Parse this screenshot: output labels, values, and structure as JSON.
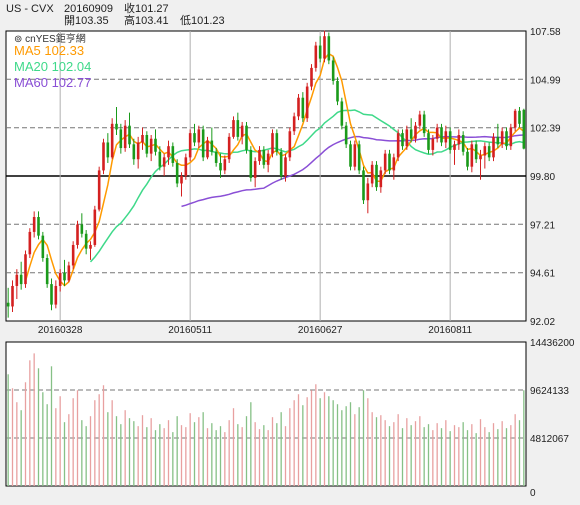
{
  "header": {
    "symbol": "US - CVX",
    "date": "20160909",
    "close_label": "收101.27",
    "open_label": "開103.35",
    "high_label": "高103.41",
    "low_label": "低101.23"
  },
  "legend": {
    "brand": "⊚ cnYES鉅亨網",
    "items": [
      {
        "label": "MA5 102.33",
        "color": "#ff9a00"
      },
      {
        "label": "MA20 102.04",
        "color": "#3fd98a"
      },
      {
        "label": "MA60 102.77",
        "color": "#8a4fd6"
      }
    ]
  },
  "colors": {
    "up": "#d42020",
    "down": "#1a9a1a",
    "vol_up": "#e8a0a0",
    "vol_down": "#86c086",
    "ma5": "#ff9a00",
    "ma20": "#3fd98a",
    "ma60": "#8a4fd6"
  },
  "chart_data": [
    {
      "type": "candlestick",
      "y_ticks": [
        "107.58",
        "104.99",
        "102.39",
        "99.80",
        "97.21",
        "94.61",
        "92.02"
      ],
      "ylim": [
        92.02,
        107.58
      ],
      "x_ticks": [
        "20160328",
        "20160511",
        "20160627",
        "20160811"
      ],
      "x_tick_index": [
        12,
        42,
        72,
        102
      ],
      "reference_line": 99.8,
      "n_bars": 120,
      "ohlc": [
        [
          93.0,
          93.8,
          92.2,
          92.8
        ],
        [
          92.8,
          94.2,
          92.5,
          93.9
        ],
        [
          93.9,
          94.8,
          93.2,
          94.5
        ],
        [
          94.5,
          95.2,
          93.7,
          94.0
        ],
        [
          94.0,
          95.8,
          93.8,
          95.6
        ],
        [
          95.6,
          97.0,
          95.4,
          96.8
        ],
        [
          96.8,
          97.9,
          96.5,
          97.6
        ],
        [
          97.6,
          97.9,
          96.4,
          96.6
        ],
        [
          96.6,
          96.8,
          95.2,
          95.4
        ],
        [
          95.4,
          95.6,
          93.8,
          94.0
        ],
        [
          94.0,
          94.3,
          92.6,
          92.9
        ],
        [
          92.9,
          94.2,
          92.7,
          93.9
        ],
        [
          93.9,
          94.8,
          93.6,
          94.6
        ],
        [
          94.6,
          95.3,
          93.9,
          94.2
        ],
        [
          94.2,
          95.2,
          94.1,
          95.0
        ],
        [
          95.0,
          96.3,
          94.8,
          96.1
        ],
        [
          96.1,
          97.4,
          95.9,
          97.2
        ],
        [
          97.2,
          97.8,
          96.5,
          96.7
        ],
        [
          96.7,
          96.9,
          95.6,
          95.9
        ],
        [
          95.9,
          96.3,
          95.3,
          96.1
        ],
        [
          96.1,
          98.2,
          96.0,
          98.0
        ],
        [
          98.0,
          100.3,
          97.9,
          100.1
        ],
        [
          100.1,
          101.8,
          99.9,
          101.6
        ],
        [
          101.6,
          102.1,
          100.5,
          100.8
        ],
        [
          100.8,
          102.9,
          100.7,
          102.6
        ],
        [
          102.6,
          103.5,
          102.0,
          102.3
        ],
        [
          102.3,
          102.6,
          101.0,
          101.3
        ],
        [
          101.3,
          102.8,
          101.1,
          102.5
        ],
        [
          102.5,
          103.2,
          101.3,
          101.5
        ],
        [
          101.5,
          101.8,
          100.4,
          100.7
        ],
        [
          100.7,
          101.9,
          100.2,
          101.6
        ],
        [
          101.6,
          102.4,
          101.2,
          102.0
        ],
        [
          102.0,
          102.2,
          100.8,
          101.0
        ],
        [
          101.0,
          102.0,
          100.6,
          101.8
        ],
        [
          101.8,
          102.3,
          100.9,
          101.1
        ],
        [
          101.1,
          101.4,
          100.1,
          100.3
        ],
        [
          100.3,
          101.0,
          99.8,
          100.8
        ],
        [
          100.8,
          101.7,
          100.4,
          101.4
        ],
        [
          101.4,
          101.6,
          100.3,
          100.5
        ],
        [
          100.5,
          100.7,
          99.2,
          99.4
        ],
        [
          99.4,
          100.0,
          98.7,
          99.8
        ],
        [
          99.8,
          101.0,
          99.6,
          100.8
        ],
        [
          100.8,
          102.3,
          100.6,
          102.1
        ],
        [
          102.1,
          102.6,
          101.4,
          101.6
        ],
        [
          101.6,
          102.5,
          101.3,
          102.3
        ],
        [
          102.3,
          102.5,
          100.6,
          100.8
        ],
        [
          100.8,
          101.9,
          100.7,
          101.7
        ],
        [
          101.7,
          102.4,
          100.9,
          101.1
        ],
        [
          101.1,
          101.3,
          100.3,
          100.5
        ],
        [
          100.5,
          101.0,
          99.7,
          100.1
        ],
        [
          100.1,
          100.9,
          99.9,
          100.7
        ],
        [
          100.7,
          102.1,
          100.5,
          101.9
        ],
        [
          101.9,
          103.0,
          101.8,
          102.8
        ],
        [
          102.8,
          103.2,
          101.7,
          101.9
        ],
        [
          101.9,
          102.7,
          101.5,
          102.5
        ],
        [
          102.5,
          102.7,
          101.0,
          101.2
        ],
        [
          101.2,
          101.4,
          99.5,
          99.7
        ],
        [
          99.7,
          100.8,
          99.2,
          100.6
        ],
        [
          100.6,
          101.4,
          100.4,
          101.2
        ],
        [
          101.2,
          101.4,
          100.2,
          100.4
        ],
        [
          100.4,
          101.2,
          100.0,
          101.0
        ],
        [
          101.0,
          102.3,
          100.8,
          102.1
        ],
        [
          102.1,
          102.3,
          100.9,
          101.1
        ],
        [
          101.1,
          101.3,
          99.6,
          99.8
        ],
        [
          99.8,
          101.0,
          99.5,
          100.8
        ],
        [
          100.8,
          102.4,
          100.6,
          102.2
        ],
        [
          102.2,
          103.2,
          102.0,
          103.0
        ],
        [
          103.0,
          104.2,
          102.8,
          104.0
        ],
        [
          104.0,
          104.3,
          102.7,
          102.9
        ],
        [
          102.9,
          104.8,
          102.7,
          104.6
        ],
        [
          104.6,
          105.8,
          104.4,
          105.6
        ],
        [
          105.6,
          107.0,
          105.4,
          106.8
        ],
        [
          106.8,
          107.3,
          105.9,
          106.1
        ],
        [
          106.1,
          107.6,
          105.9,
          107.3
        ],
        [
          107.3,
          107.5,
          105.8,
          106.0
        ],
        [
          106.0,
          106.2,
          104.7,
          104.9
        ],
        [
          104.9,
          105.1,
          103.6,
          103.8
        ],
        [
          103.8,
          104.0,
          102.3,
          102.5
        ],
        [
          102.5,
          102.7,
          101.3,
          101.5
        ],
        [
          101.5,
          101.7,
          100.1,
          100.3
        ],
        [
          100.3,
          101.7,
          100.1,
          101.5
        ],
        [
          101.5,
          101.7,
          99.9,
          100.1
        ],
        [
          100.1,
          100.3,
          98.3,
          98.5
        ],
        [
          98.5,
          99.7,
          97.8,
          99.4
        ],
        [
          99.4,
          100.6,
          99.2,
          100.4
        ],
        [
          100.4,
          100.6,
          99.0,
          99.2
        ],
        [
          99.2,
          100.3,
          98.9,
          100.1
        ],
        [
          100.1,
          101.2,
          99.9,
          101.0
        ],
        [
          101.0,
          101.2,
          99.9,
          100.1
        ],
        [
          100.1,
          101.0,
          99.6,
          100.8
        ],
        [
          100.8,
          102.3,
          100.6,
          102.1
        ],
        [
          102.1,
          102.3,
          101.2,
          101.4
        ],
        [
          101.4,
          102.5,
          101.2,
          102.3
        ],
        [
          102.3,
          102.9,
          101.6,
          101.8
        ],
        [
          101.8,
          102.7,
          101.6,
          102.5
        ],
        [
          102.5,
          103.3,
          102.3,
          103.1
        ],
        [
          103.1,
          103.3,
          101.9,
          102.1
        ],
        [
          102.1,
          102.3,
          101.0,
          101.2
        ],
        [
          101.2,
          102.0,
          100.9,
          101.8
        ],
        [
          101.8,
          102.6,
          101.6,
          102.4
        ],
        [
          102.4,
          102.6,
          101.4,
          101.6
        ],
        [
          101.6,
          102.5,
          101.3,
          102.2
        ],
        [
          102.2,
          102.4,
          101.0,
          101.2
        ],
        [
          101.2,
          101.7,
          100.4,
          101.5
        ],
        [
          101.5,
          102.3,
          101.2,
          102.0
        ],
        [
          102.0,
          102.2,
          100.9,
          101.1
        ],
        [
          101.1,
          101.3,
          100.1,
          100.3
        ],
        [
          100.3,
          101.7,
          100.0,
          101.5
        ],
        [
          101.5,
          101.7,
          100.5,
          100.7
        ],
        [
          100.7,
          101.2,
          99.6,
          100.9
        ],
        [
          100.9,
          101.6,
          100.2,
          101.4
        ],
        [
          101.4,
          101.6,
          100.6,
          100.8
        ],
        [
          100.8,
          102.1,
          100.6,
          101.9
        ],
        [
          101.9,
          102.6,
          101.3,
          101.5
        ],
        [
          101.5,
          102.4,
          101.3,
          102.2
        ],
        [
          102.2,
          102.4,
          101.2,
          101.4
        ],
        [
          101.4,
          102.6,
          101.2,
          102.4
        ],
        [
          102.4,
          103.4,
          102.2,
          103.3
        ],
        [
          103.3,
          103.5,
          102.4,
          102.6
        ],
        [
          103.35,
          103.41,
          101.23,
          101.27
        ]
      ]
    },
    {
      "type": "bar",
      "y_ticks": [
        "14436200",
        "9624133",
        "4812067",
        "0"
      ],
      "ylim": [
        0,
        14436200
      ],
      "volume": [
        11200000,
        9800000,
        8400000,
        7600000,
        10400000,
        12600000,
        13300000,
        11800000,
        9400000,
        8200000,
        12000000,
        7800000,
        9000000,
        6400000,
        7200000,
        8800000,
        9600000,
        6600000,
        6000000,
        7000000,
        8600000,
        9200000,
        10100000,
        7400000,
        8600000,
        7000000,
        6200000,
        7600000,
        6800000,
        6500000,
        6000000,
        7100000,
        5900000,
        6800000,
        5600000,
        6200000,
        5800000,
        6600000,
        5400000,
        7000000,
        6100000,
        5900000,
        7300000,
        6400000,
        6900000,
        7400000,
        5800000,
        6300000,
        5600000,
        6000000,
        5400000,
        6600000,
        7800000,
        6200000,
        5900000,
        7000000,
        8400000,
        6400000,
        5700000,
        6100000,
        5600000,
        6900000,
        6300000,
        7400000,
        6000000,
        7800000,
        8600000,
        9200000,
        8100000,
        8900000,
        9600000,
        10200000,
        8800000,
        9400000,
        9000000,
        8600000,
        8200000,
        7600000,
        8000000,
        8400000,
        7200000,
        7900000,
        9600000,
        8800000,
        7400000,
        6900000,
        7100000,
        6600000,
        6000000,
        6400000,
        7200000,
        5800000,
        6800000,
        6100000,
        6500000,
        7000000,
        5900000,
        6200000,
        5600000,
        6300000,
        5800000,
        6600000,
        5500000,
        6100000,
        5900000,
        6400000,
        5600000,
        6200000,
        5300000,
        6700000,
        5900000,
        5400000,
        6300000,
        5700000,
        6500000,
        5800000,
        6100000,
        7200000,
        6600000,
        9600000
      ]
    }
  ]
}
